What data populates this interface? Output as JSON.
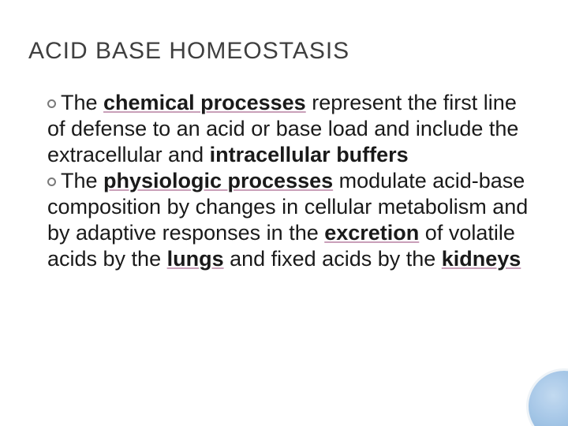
{
  "title": "ACID BASE HOMEOSTASIS",
  "bullets": [
    {
      "segments": [
        {
          "text": "The ",
          "style": "plain"
        },
        {
          "text": "chemical processes",
          "style": "bold-ul"
        },
        {
          "text": " represent the first line of defense to an acid or base load and include the extracellular and ",
          "style": "plain"
        },
        {
          "text": "intracellular buffers",
          "style": "bold-only"
        }
      ]
    },
    {
      "segments": [
        {
          "text": "The ",
          "style": "plain"
        },
        {
          "text": "physiologic processes",
          "style": "bold-ul"
        },
        {
          "text": " modulate acid-base composition by changes in cellular metabolism and by adaptive responses in the ",
          "style": "plain"
        },
        {
          "text": "excretion",
          "style": "bold-ul"
        },
        {
          "text": " of volatile acids by the ",
          "style": "plain"
        },
        {
          "text": "lungs",
          "style": "bold-ul"
        },
        {
          "text": " and fixed acids by the ",
          "style": "plain"
        },
        {
          "text": "kidneys",
          "style": "bold-ul"
        }
      ]
    }
  ],
  "colors": {
    "title_color": "#3f3f3f",
    "text_color": "#1a1a1a",
    "underline_accent": "#c9a0b9",
    "bullet_ring": "#7a7a7a",
    "circle_gradient_light": "#bcd6ef",
    "circle_gradient_dark": "#6f9fd0",
    "background": "#ffffff"
  },
  "typography": {
    "title_fontsize": 30,
    "body_fontsize": 27,
    "font_family": "Arial"
  }
}
